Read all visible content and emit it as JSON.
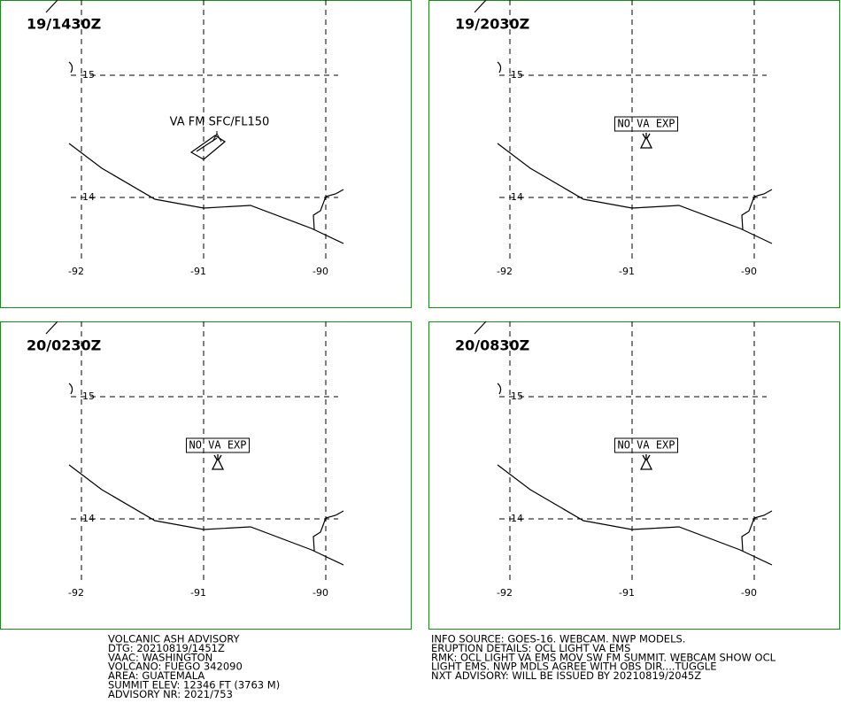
{
  "panels": [
    {
      "time": "19/1430Z",
      "label": "VA FM SFC/FL150",
      "boxed": false
    },
    {
      "time": "19/2030Z",
      "label": "NO VA EXP",
      "boxed": true
    },
    {
      "time": "20/0230Z",
      "label": "NO VA EXP",
      "boxed": true
    },
    {
      "time": "20/0830Z",
      "label": "NO VA EXP",
      "boxed": true
    }
  ],
  "grid": {
    "lat": [
      15,
      14
    ],
    "lon": [
      -92,
      -91,
      -90
    ]
  },
  "advisory": {
    "left": [
      "VOLCANIC ASH ADVISORY",
      "DTG: 20210819/1451Z",
      "VAAC: WASHINGTON",
      "VOLCANO: FUEGO 342090",
      "AREA: GUATEMALA",
      "SUMMIT ELEV: 12346 FT (3763 M)",
      "ADVISORY NR: 2021/753"
    ],
    "right": [
      "INFO SOURCE: GOES-16. WEBCAM. NWP MODELS.",
      "ERUPTION DETAILS: OCL LIGHT VA EMS",
      "RMK: OCL LIGHT VA EMS MOV SW FM SUMMIT. WEBCAM SHOW OCL",
      "LIGHT EMS. NWP MDLS AGREE WITH OBS DIR....TUGGLE",
      "NXT ADVISORY: WILL BE ISSUED BY 20210819/2045Z"
    ]
  }
}
